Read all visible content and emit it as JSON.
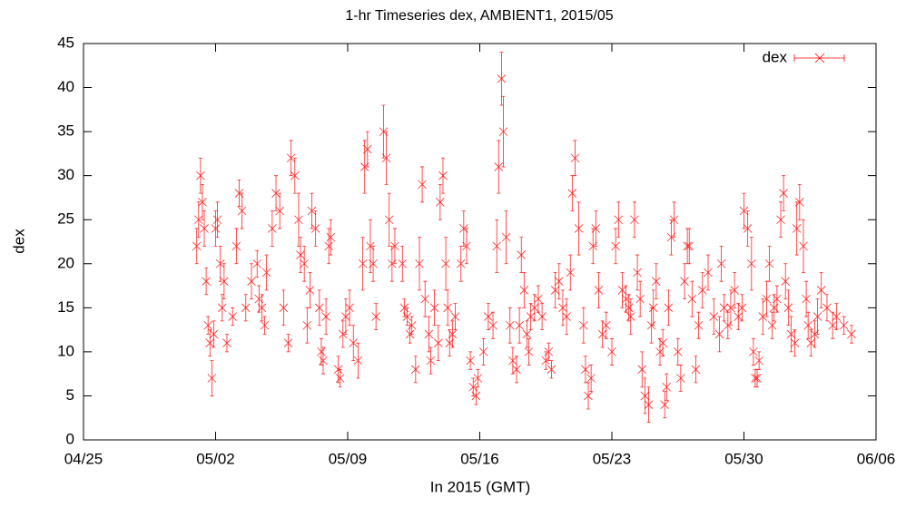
{
  "chart_data": {
    "type": "scatter",
    "title": "1-hr Timeseries dex, AMBIENT1, 2015/05",
    "x_label": "In 2015 (GMT)",
    "y_label": "dex",
    "xlim": [
      -5,
      37
    ],
    "xticks": [
      {
        "value": -5,
        "label": "04/25"
      },
      {
        "value": 2,
        "label": "05/02"
      },
      {
        "value": 9,
        "label": "05/09"
      },
      {
        "value": 16,
        "label": "05/16"
      },
      {
        "value": 23,
        "label": "05/23"
      },
      {
        "value": 30,
        "label": "05/30"
      },
      {
        "value": 37,
        "label": "06/06"
      }
    ],
    "ylim": [
      0,
      45
    ],
    "yticks": [
      0,
      5,
      10,
      15,
      20,
      25,
      30,
      35,
      40,
      45
    ],
    "legend": "top-right",
    "x": [
      1.0,
      1.1,
      1.2,
      1.3,
      1.4,
      1.5,
      1.6,
      1.7,
      1.8,
      1.9,
      2.0,
      2.1,
      2.25,
      2.35,
      2.45,
      2.6,
      2.9,
      3.1,
      3.25,
      3.4,
      3.6,
      3.9,
      4.2,
      4.3,
      4.45,
      4.6,
      4.7,
      5.0,
      5.2,
      5.4,
      5.6,
      5.85,
      6.0,
      6.2,
      6.4,
      6.5,
      6.7,
      6.85,
      7.0,
      7.1,
      7.3,
      7.5,
      7.6,
      7.7,
      7.85,
      8.0,
      8.1,
      8.5,
      8.6,
      8.75,
      8.9,
      9.1,
      9.3,
      9.55,
      9.8,
      9.9,
      10.05,
      10.2,
      10.35,
      10.5,
      10.9,
      11.05,
      11.2,
      11.35,
      11.5,
      11.9,
      12.0,
      12.15,
      12.3,
      12.4,
      12.6,
      12.8,
      12.95,
      13.1,
      13.3,
      13.4,
      13.6,
      13.8,
      13.9,
      14.05,
      14.2,
      14.3,
      14.4,
      14.55,
      14.7,
      15.0,
      15.15,
      15.3,
      15.5,
      15.65,
      15.8,
      15.9,
      16.2,
      16.45,
      16.7,
      16.9,
      17.0,
      17.15,
      17.25,
      17.4,
      17.6,
      17.75,
      17.95,
      18.1,
      18.2,
      18.35,
      18.5,
      18.6,
      18.7,
      18.9,
      19.1,
      19.3,
      19.5,
      19.65,
      19.8,
      20.0,
      20.2,
      20.4,
      20.6,
      20.8,
      20.9,
      21.05,
      21.25,
      21.5,
      21.6,
      21.75,
      21.9,
      22.0,
      22.15,
      22.3,
      22.5,
      22.7,
      23.0,
      23.2,
      23.35,
      23.55,
      23.75,
      23.9,
      24.0,
      24.2,
      24.35,
      24.5,
      24.6,
      24.75,
      24.95,
      25.1,
      25.2,
      25.35,
      25.55,
      25.7,
      25.8,
      25.9,
      26.0,
      26.15,
      26.3,
      26.5,
      26.65,
      26.85,
      27.0,
      27.1,
      27.25,
      27.45,
      27.6,
      27.8,
      28.1,
      28.4,
      28.7,
      28.8,
      28.95,
      29.15,
      29.3,
      29.5,
      29.7,
      29.9,
      30.0,
      30.2,
      30.4,
      30.5,
      30.6,
      30.7,
      30.8,
      31.0,
      31.2,
      31.35,
      31.5,
      31.6,
      31.75,
      31.95,
      32.1,
      32.2,
      32.35,
      32.5,
      32.7,
      32.8,
      32.95,
      33.15,
      33.3,
      33.4,
      33.55,
      33.75,
      33.9,
      34.1,
      34.4,
      34.7,
      34.9,
      35.3,
      35.7
    ],
    "series": [
      {
        "name": "dex",
        "color": "#ff0000",
        "values": [
          22,
          25,
          30,
          27,
          24,
          18,
          13,
          11,
          7,
          12,
          24,
          25,
          20,
          15,
          18,
          11,
          14,
          22,
          28,
          26,
          15,
          18,
          20,
          16,
          15,
          13,
          19,
          24,
          28,
          26,
          15,
          11,
          32,
          30,
          25,
          21,
          20,
          13,
          17,
          26,
          24,
          15,
          10,
          9,
          14,
          22,
          23,
          8,
          7,
          12,
          14,
          15,
          11,
          9,
          20,
          31,
          33,
          22,
          20,
          14,
          35,
          32,
          25,
          20,
          22,
          20,
          15,
          14,
          12,
          13,
          8,
          20,
          29,
          16,
          12,
          9,
          15,
          11,
          27,
          30,
          20,
          15,
          11,
          12,
          14,
          20,
          24,
          22,
          9,
          6,
          5,
          7,
          10,
          14,
          13,
          22,
          31,
          41,
          35,
          23,
          13,
          9,
          8,
          13,
          21,
          17,
          12,
          10,
          14,
          15,
          16,
          14,
          9,
          10,
          8,
          17,
          18,
          15,
          14,
          19,
          28,
          32,
          24,
          13,
          8,
          5,
          7,
          22,
          24,
          17,
          12,
          13,
          10,
          22,
          25,
          17,
          16,
          15,
          14,
          25,
          19,
          16,
          8,
          5,
          4,
          13,
          15,
          18,
          10,
          11,
          4,
          6,
          15,
          23,
          25,
          10,
          7,
          18,
          22,
          22,
          16,
          8,
          13,
          17,
          19,
          14,
          12,
          20,
          15,
          13,
          15,
          17,
          14,
          15,
          26,
          24,
          20,
          10,
          7,
          7,
          9,
          14,
          16,
          20,
          13,
          15,
          16,
          25,
          28,
          18,
          15,
          12,
          11,
          24,
          27,
          22,
          16,
          13,
          11,
          12,
          14,
          17,
          15,
          13,
          14,
          13,
          12
        ],
        "errors": [
          2,
          2,
          2,
          2,
          2,
          1.5,
          1,
          1.5,
          2,
          1.5,
          2,
          2,
          2,
          1.5,
          2,
          1,
          1,
          2,
          1.5,
          2,
          1.5,
          2,
          1.5,
          1.5,
          1.5,
          1,
          2,
          2,
          2,
          2,
          2,
          1,
          2,
          2,
          3,
          2,
          2,
          2,
          2,
          2,
          2,
          2,
          1.5,
          1.5,
          2,
          2,
          2,
          1.5,
          1,
          1.5,
          2,
          2,
          2,
          2,
          3,
          3,
          2,
          3,
          2,
          1.5,
          3,
          3,
          3,
          2,
          2,
          2,
          1,
          1,
          1,
          1,
          1.5,
          3,
          2,
          2,
          2,
          1.5,
          2,
          2,
          2,
          2,
          3,
          2,
          1.5,
          1.5,
          1.5,
          2,
          2,
          2,
          1,
          1,
          1,
          1,
          1.5,
          1.5,
          1.5,
          3,
          3,
          3,
          4,
          3,
          2,
          1.5,
          1.5,
          2,
          2,
          2,
          1.5,
          1.5,
          1.5,
          1.5,
          1.5,
          1.5,
          1,
          1,
          1,
          2,
          2,
          2,
          2,
          2,
          2,
          2,
          3,
          2,
          1.5,
          1.5,
          1.5,
          2,
          2,
          2,
          1.5,
          1.5,
          1.5,
          2,
          2,
          2,
          1.5,
          1.5,
          2,
          2,
          2,
          2,
          2,
          2,
          2,
          2,
          2,
          2,
          1.5,
          1.5,
          1.5,
          1.5,
          2,
          2,
          2,
          1.5,
          1.5,
          2,
          2,
          2,
          2,
          1.5,
          1.5,
          2,
          2,
          2,
          2,
          2,
          1.5,
          1.5,
          2,
          2,
          1.5,
          1.5,
          2,
          2,
          3,
          1.5,
          1,
          1,
          1,
          2,
          2,
          2,
          1.5,
          1.5,
          1.5,
          2,
          2,
          2,
          2,
          2,
          1.5,
          3,
          2,
          3,
          2,
          1.5,
          1.5,
          1.5,
          2,
          2,
          1.5,
          1.5,
          1.5,
          1,
          1
        ]
      }
    ]
  }
}
